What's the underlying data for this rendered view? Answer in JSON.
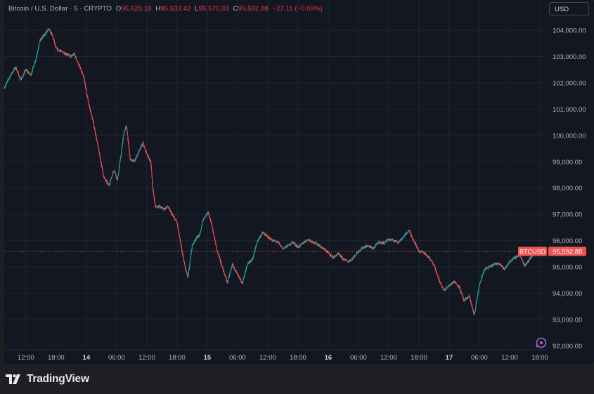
{
  "legend": {
    "symbol": "Bitcoin / U.S. Dollar · 5 · CRYPTO",
    "o_label": "O",
    "o_value": "95,620.18",
    "h_label": "H",
    "h_value": "95,633.42",
    "l_label": "L",
    "l_value": "95,570.33",
    "c_label": "C",
    "c_value": "95,592.88",
    "change": "−27.11 (−0.03%)"
  },
  "currency_button": "USD",
  "footer": {
    "brand": "TradingView",
    "logo_icon": "tradingview-logo-icon"
  },
  "colors": {
    "up": "#26a69a",
    "down": "#ef5350",
    "background": "#131722",
    "grid": "#1f2433",
    "axis_text": "#b2b5be"
  },
  "chart_data": {
    "type": "candlestick",
    "symbol": "BTCUSD",
    "interval": "5",
    "last_price": 95592.88,
    "last_price_label": "95,592.88",
    "price_tag_label": "BTCUSD",
    "y_ticks": [
      92000,
      93000,
      94000,
      95000,
      96000,
      97000,
      98000,
      99000,
      100000,
      101000,
      102000,
      103000,
      104000
    ],
    "y_tick_labels": [
      "92,000.00",
      "93,000.00",
      "94,000.00",
      "95,000.00",
      "96,000.00",
      "97,000.00",
      "98,000.00",
      "99,000.00",
      "100,000.00",
      "101,000.00",
      "102,000.00",
      "103,000.00",
      "104,000.00"
    ],
    "x_tick_labels": [
      "12:00",
      "18:00",
      "14",
      "06:00",
      "12:00",
      "18:00",
      "15",
      "06:00",
      "12:00",
      "18:00",
      "16",
      "06:00",
      "12:00",
      "18:00",
      "17",
      "06:00",
      "12:00",
      "18:00"
    ],
    "x_tick_hours": [
      12,
      18,
      24,
      30,
      36,
      42,
      48,
      54,
      60,
      66,
      72,
      78,
      84,
      90,
      96,
      102,
      108,
      114
    ],
    "x_range_hours": [
      7.7,
      115.4
    ],
    "ylim": [
      91850,
      105150
    ],
    "grid": true,
    "price_path": [
      [
        7.7,
        101800
      ],
      [
        9,
        102300
      ],
      [
        10,
        102600
      ],
      [
        11,
        102100
      ],
      [
        12,
        102500
      ],
      [
        13,
        102300
      ],
      [
        14,
        102900
      ],
      [
        14.8,
        103600
      ],
      [
        16,
        103900
      ],
      [
        16.5,
        104050
      ],
      [
        17.3,
        103800
      ],
      [
        18,
        103300
      ],
      [
        19,
        103200
      ],
      [
        20,
        103100
      ],
      [
        21,
        103000
      ],
      [
        21.6,
        103100
      ],
      [
        22.5,
        102700
      ],
      [
        23.5,
        102200
      ],
      [
        24.5,
        101200
      ],
      [
        25.5,
        100400
      ],
      [
        26.5,
        99400
      ],
      [
        27.5,
        98400
      ],
      [
        28.5,
        98100
      ],
      [
        29.5,
        98700
      ],
      [
        30.2,
        98300
      ],
      [
        31,
        99400
      ],
      [
        31.5,
        100150
      ],
      [
        32,
        100350
      ],
      [
        32.7,
        99100
      ],
      [
        33.5,
        99000
      ],
      [
        34.5,
        99400
      ],
      [
        35.2,
        99700
      ],
      [
        36,
        99300
      ],
      [
        36.8,
        99000
      ],
      [
        37.2,
        98000
      ],
      [
        37.7,
        97300
      ],
      [
        38.5,
        97300
      ],
      [
        39.5,
        97200
      ],
      [
        40.2,
        97300
      ],
      [
        41,
        97000
      ],
      [
        42,
        96700
      ],
      [
        42.8,
        95800
      ],
      [
        43.5,
        95100
      ],
      [
        44.2,
        94600
      ],
      [
        45,
        95800
      ],
      [
        45.8,
        96100
      ],
      [
        46.5,
        96200
      ],
      [
        47.2,
        96800
      ],
      [
        48.2,
        97100
      ],
      [
        49,
        96500
      ],
      [
        50,
        95600
      ],
      [
        51,
        95000
      ],
      [
        52,
        94400
      ],
      [
        53,
        95100
      ],
      [
        54,
        94700
      ],
      [
        55,
        94400
      ],
      [
        56,
        95100
      ],
      [
        57,
        95300
      ],
      [
        58,
        96000
      ],
      [
        59,
        96300
      ],
      [
        60,
        96150
      ],
      [
        61,
        96000
      ],
      [
        62,
        95950
      ],
      [
        63,
        95700
      ],
      [
        64,
        95800
      ],
      [
        65,
        95950
      ],
      [
        66,
        95750
      ],
      [
        67,
        95900
      ],
      [
        68,
        96050
      ],
      [
        69,
        95950
      ],
      [
        70,
        95850
      ],
      [
        71,
        95700
      ],
      [
        72,
        95550
      ],
      [
        73,
        95350
      ],
      [
        74,
        95500
      ],
      [
        75,
        95300
      ],
      [
        76,
        95200
      ],
      [
        77,
        95350
      ],
      [
        78,
        95600
      ],
      [
        79,
        95750
      ],
      [
        80,
        95800
      ],
      [
        81,
        95700
      ],
      [
        82,
        95950
      ],
      [
        83,
        95900
      ],
      [
        84,
        96050
      ],
      [
        85,
        96000
      ],
      [
        86,
        95950
      ],
      [
        87,
        96150
      ],
      [
        88,
        96400
      ],
      [
        89,
        96000
      ],
      [
        90,
        95600
      ],
      [
        91,
        95550
      ],
      [
        92,
        95350
      ],
      [
        93,
        95100
      ],
      [
        94,
        94500
      ],
      [
        95,
        94100
      ],
      [
        96,
        94300
      ],
      [
        97,
        94450
      ],
      [
        98,
        94250
      ],
      [
        99,
        93700
      ],
      [
        100,
        93900
      ],
      [
        101,
        93150
      ],
      [
        102,
        94300
      ],
      [
        103,
        94900
      ],
      [
        104,
        95000
      ],
      [
        105,
        95100
      ],
      [
        106,
        95150
      ],
      [
        107,
        94900
      ],
      [
        108,
        95200
      ],
      [
        109,
        95350
      ],
      [
        110,
        95450
      ],
      [
        111,
        95050
      ],
      [
        112,
        95300
      ],
      [
        113,
        95550
      ],
      [
        114,
        95700
      ],
      [
        115,
        95600
      ],
      [
        115.4,
        95592.88
      ]
    ]
  }
}
